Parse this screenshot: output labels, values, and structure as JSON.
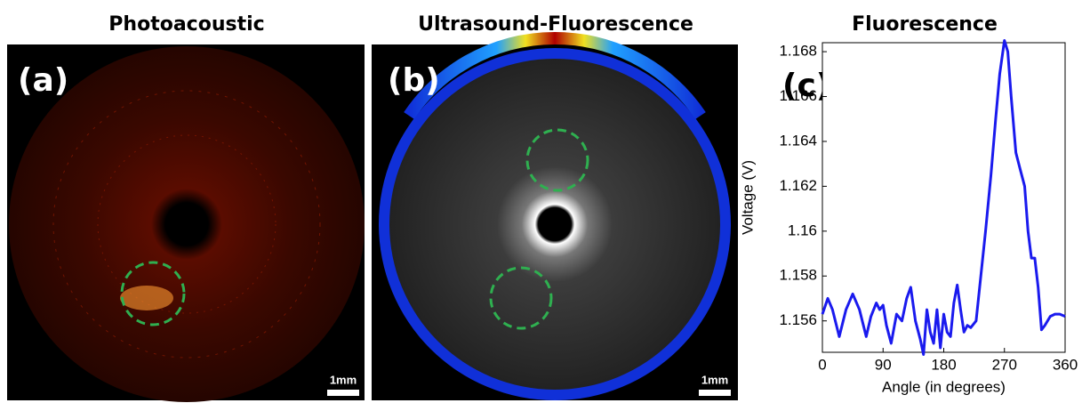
{
  "panels": [
    {
      "title": "Photoacoustic",
      "label": "(a)",
      "scale": "1mm"
    },
    {
      "title": "Ultrasound-Fluorescence",
      "label": "(b)",
      "scale": "1mm"
    },
    {
      "title": "Fluorescence",
      "label": "(c)"
    }
  ],
  "chart_data": {
    "type": "line",
    "x_label": "Angle (in degrees)",
    "y_label": "Voltage (V)",
    "x": [
      0,
      8,
      15,
      25,
      35,
      45,
      55,
      65,
      72,
      80,
      85,
      90,
      95,
      102,
      110,
      118,
      125,
      131,
      138,
      145,
      150,
      155,
      160,
      165,
      170,
      175,
      180,
      185,
      190,
      195,
      200,
      205,
      210,
      215,
      220,
      228,
      235,
      242,
      250,
      257,
      263,
      270,
      275,
      280,
      287,
      293,
      300,
      305,
      310,
      315,
      320,
      325,
      330,
      338,
      345,
      352,
      360
    ],
    "values": [
      1.1563,
      1.157,
      1.1565,
      1.1553,
      1.1565,
      1.1572,
      1.1565,
      1.1553,
      1.1562,
      1.1568,
      1.1565,
      1.1567,
      1.1558,
      1.155,
      1.1563,
      1.156,
      1.157,
      1.1575,
      1.156,
      1.1552,
      1.1545,
      1.1565,
      1.1555,
      1.155,
      1.1565,
      1.1548,
      1.1563,
      1.1555,
      1.1553,
      1.1568,
      1.1576,
      1.1565,
      1.1555,
      1.1558,
      1.1557,
      1.156,
      1.158,
      1.16,
      1.1625,
      1.165,
      1.167,
      1.1685,
      1.168,
      1.166,
      1.1635,
      1.1628,
      1.162,
      1.16,
      1.1588,
      1.1588,
      1.1575,
      1.1556,
      1.1558,
      1.1562,
      1.1563,
      1.1563,
      1.1562
    ],
    "color": "#1a1aee",
    "xlim": [
      0,
      360
    ],
    "xticks": [
      0,
      90,
      180,
      270,
      360
    ],
    "ylim": [
      1.1546,
      1.1684
    ],
    "yticks": [
      1.156,
      1.158,
      1.16,
      1.162,
      1.164,
      1.166,
      1.168
    ]
  }
}
